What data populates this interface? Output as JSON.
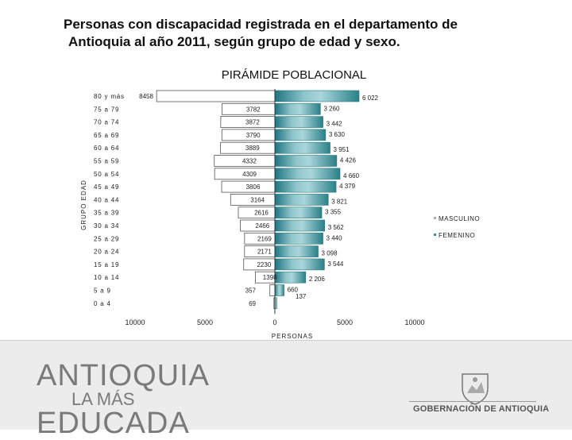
{
  "slide": {
    "title_line1": "Personas con discapacidad registrada en el departamento de",
    "title_line2": "Antioquia al año 2011, según grupo de edad y sexo."
  },
  "chart_data": {
    "type": "bar",
    "orientation": "horizontal-pyramid",
    "title": "PIRÁMIDE POBLACIONAL",
    "xlabel": "PERSONAS",
    "ylabel": "GRUPO EDAD",
    "xlim": [
      -10000,
      10000
    ],
    "x_tick_labels": [
      "10000",
      "5000",
      "0",
      "5000",
      "10000"
    ],
    "x_tick_values": [
      -10000,
      -5000,
      0,
      5000,
      10000
    ],
    "categories": [
      "80 y más",
      "75 a 79",
      "70 a 74",
      "65 a 69",
      "60 a 64",
      "55 a 59",
      "50 a 54",
      "45 a 49",
      "40 a 44",
      "35 a 39",
      "30 a 34",
      "25 a 29",
      "20 a 24",
      "15 a 19",
      "10 a 14",
      "5 a 9",
      "0 a 4"
    ],
    "series": [
      {
        "name": "MASCULINO",
        "color": "#ffffff",
        "values": [
          8458,
          3782,
          3872,
          3790,
          3889,
          4332,
          4309,
          3806,
          3164,
          2616,
          2466,
          2169,
          2171,
          2230,
          1398,
          357,
          69
        ],
        "labels": [
          "8458",
          "3782",
          "3872",
          "3790",
          "3889",
          "4332",
          "4309",
          "3806",
          "3164",
          "2616",
          "2466",
          "2169",
          "2171",
          "2230",
          "1398",
          "357",
          "69"
        ]
      },
      {
        "name": "FEMENINO",
        "color": "#3a8f96",
        "values": [
          6022,
          3260,
          3442,
          3630,
          3951,
          4426,
          4660,
          4379,
          3821,
          3355,
          3562,
          3440,
          3098,
          3544,
          2206,
          660,
          137
        ],
        "labels": [
          "6 022",
          "3 260",
          "3 442",
          "3 630",
          "3 951",
          "4 426",
          "4 660",
          "4 379",
          "3 821",
          "3 355",
          "3 562",
          "3 440",
          "3 098",
          "3 544",
          "2 206",
          "660",
          "137"
        ]
      }
    ],
    "legend_position": "right",
    "grid": false
  },
  "footer": {
    "brand_line1": "ANTIOQUIA",
    "brand_line2": "LA MÁS",
    "brand_line3": "EDUCADA",
    "government_label": "GOBERNACIÓN DE ANTIOQUIA"
  }
}
